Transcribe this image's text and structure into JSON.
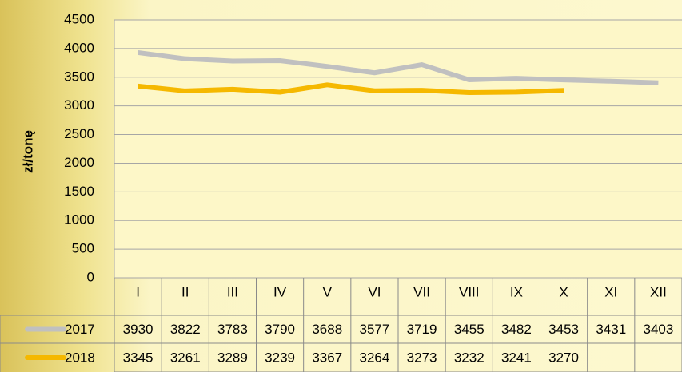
{
  "chart_data": {
    "type": "line",
    "y_label": "zł/tonę",
    "categories": [
      "I",
      "II",
      "III",
      "IV",
      "V",
      "VI",
      "VII",
      "VIII",
      "IX",
      "X",
      "XI",
      "XII"
    ],
    "series": [
      {
        "name": "2017",
        "color": "#c0c0c0",
        "values": [
          3930,
          3822,
          3783,
          3790,
          3688,
          3577,
          3719,
          3455,
          3482,
          3453,
          3431,
          3403
        ]
      },
      {
        "name": "2018",
        "color": "#f5b800",
        "values": [
          3345,
          3261,
          3289,
          3239,
          3367,
          3264,
          3273,
          3232,
          3241,
          3270,
          null,
          null
        ]
      }
    ],
    "ylim": [
      0,
      4500
    ],
    "yticks": [
      0,
      500,
      1000,
      1500,
      2000,
      2500,
      3000,
      3500,
      4000,
      4500
    ],
    "grid": true
  }
}
